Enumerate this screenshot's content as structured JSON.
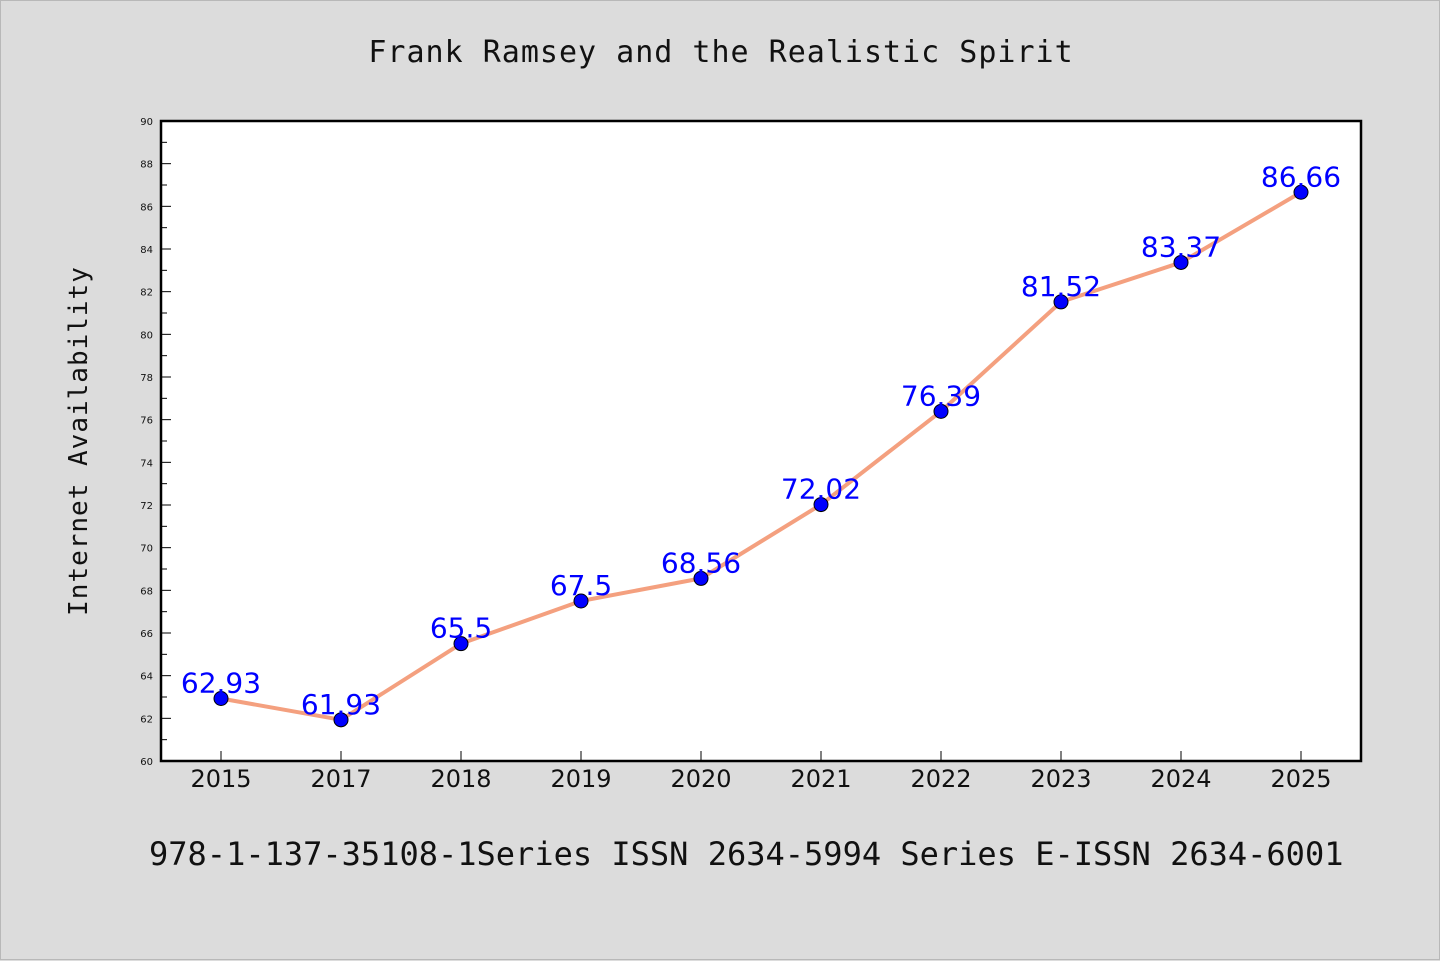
{
  "chart_data": {
    "type": "line",
    "title": "Frank Ramsey and the Realistic Spirit",
    "ylabel": "Internet Availability",
    "xlabel": "",
    "categories": [
      "2015",
      "2017",
      "2018",
      "2019",
      "2020",
      "2021",
      "2022",
      "2023",
      "2024",
      "2025"
    ],
    "series": [
      {
        "values": [
          62.93,
          61.93,
          65.5,
          67.5,
          68.56,
          72.02,
          76.39,
          81.52,
          83.37,
          86.66
        ],
        "labels": [
          "62.93",
          "61.93",
          "65.5",
          "67.5",
          "68.56",
          "72.02",
          "76.39",
          "81.52",
          "83.37",
          "86.66"
        ]
      }
    ],
    "ylim": [
      60,
      90
    ],
    "yticks": [
      "60",
      "62",
      "64",
      "66",
      "68",
      "70",
      "72",
      "74",
      "76",
      "78",
      "80",
      "82",
      "84",
      "86",
      "88",
      "90"
    ],
    "grid": false,
    "legend": "none",
    "colors": {
      "line": "#f4a07f",
      "marker": "#0000ff",
      "data_label": "#0000ff",
      "background": "#dcdcdc",
      "plot_background": "#ffffff"
    }
  },
  "footer": {
    "text": "978-1-137-35108-1Series ISSN 2634-5994 Series E-ISSN 2634-6001"
  }
}
